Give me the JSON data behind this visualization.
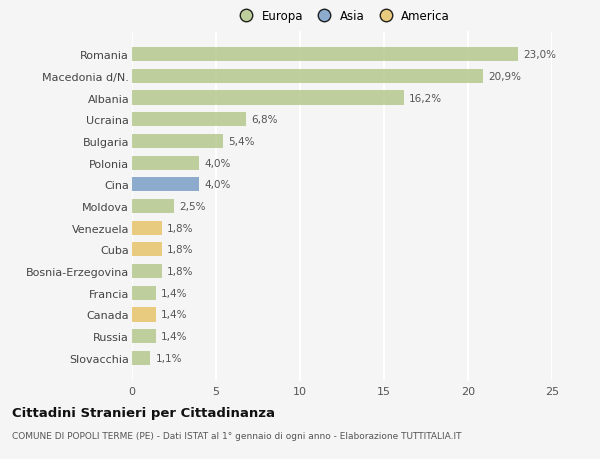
{
  "countries": [
    "Romania",
    "Macedonia d/N.",
    "Albania",
    "Ucraina",
    "Bulgaria",
    "Polonia",
    "Cina",
    "Moldova",
    "Venezuela",
    "Cuba",
    "Bosnia-Erzegovina",
    "Francia",
    "Canada",
    "Russia",
    "Slovacchia"
  ],
  "values": [
    23.0,
    20.9,
    16.2,
    6.8,
    5.4,
    4.0,
    4.0,
    2.5,
    1.8,
    1.8,
    1.8,
    1.4,
    1.4,
    1.4,
    1.1
  ],
  "labels": [
    "23,0%",
    "20,9%",
    "16,2%",
    "6,8%",
    "5,4%",
    "4,0%",
    "4,0%",
    "2,5%",
    "1,8%",
    "1,8%",
    "1,8%",
    "1,4%",
    "1,4%",
    "1,4%",
    "1,1%"
  ],
  "continents": [
    "Europa",
    "Europa",
    "Europa",
    "Europa",
    "Europa",
    "Europa",
    "Asia",
    "Europa",
    "America",
    "America",
    "Europa",
    "Europa",
    "America",
    "Europa",
    "Europa"
  ],
  "colors": {
    "Europa": "#b5c98e",
    "Asia": "#7b9fc7",
    "America": "#e8c46a"
  },
  "bar_alpha": 0.85,
  "bg_color": "#f5f5f5",
  "grid_color": "#ffffff",
  "title_main": "Cittadini Stranieri per Cittadinanza",
  "title_sub": "COMUNE DI POPOLI TERME (PE) - Dati ISTAT al 1° gennaio di ogni anno - Elaborazione TUTTITALIA.IT",
  "xlim": [
    0,
    25
  ],
  "xticks": [
    0,
    5,
    10,
    15,
    20,
    25
  ],
  "legend_labels": [
    "Europa",
    "Asia",
    "America"
  ],
  "legend_colors": [
    "#b5c98e",
    "#7b9fc7",
    "#e8c46a"
  ]
}
